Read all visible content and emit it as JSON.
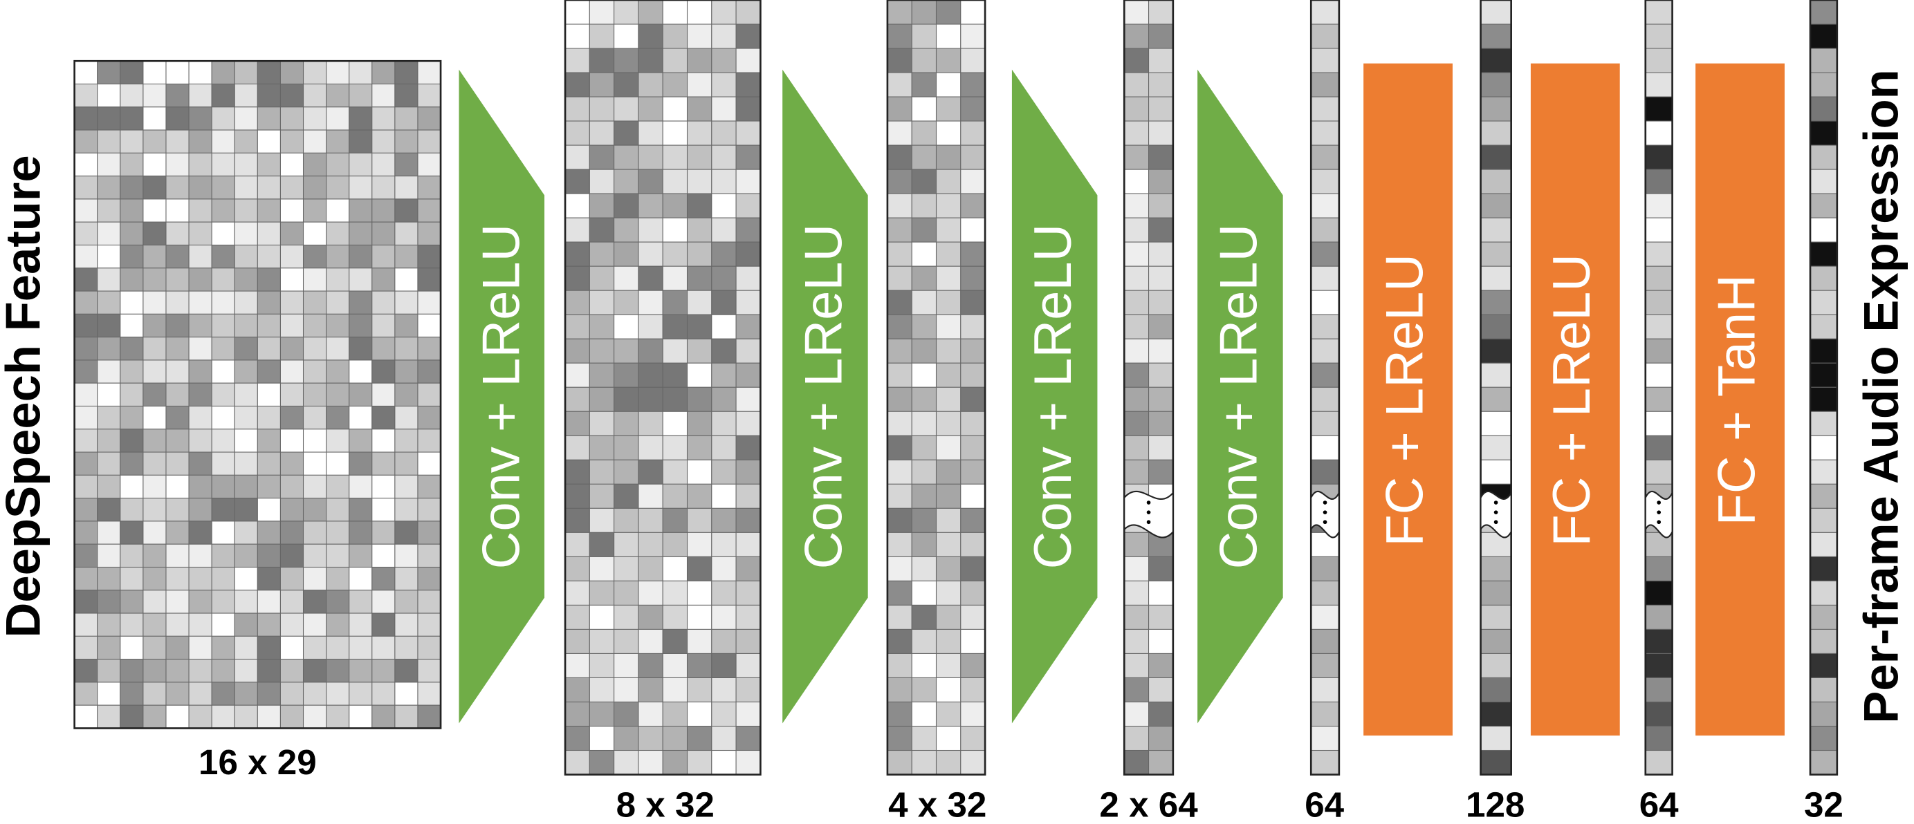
{
  "input": {
    "label": "DeepSpeech Feature",
    "shape": "16 x 29"
  },
  "conv_layers": [
    {
      "label": "Conv + LReLU",
      "output_shape": "8 x 32"
    },
    {
      "label": "Conv + LReLU",
      "output_shape": "4 x 32"
    },
    {
      "label": "Conv + LReLU",
      "output_shape": "2 x 64"
    },
    {
      "label": "Conv + LReLU",
      "output_shape": "64"
    }
  ],
  "fc_layers": [
    {
      "label": "FC + LReLU",
      "output_shape": "128"
    },
    {
      "label": "FC + LReLU",
      "output_shape": "64"
    },
    {
      "label": "FC + TanH",
      "output_shape": "32"
    }
  ],
  "output": {
    "label": "Per-frame Audio Expression"
  }
}
